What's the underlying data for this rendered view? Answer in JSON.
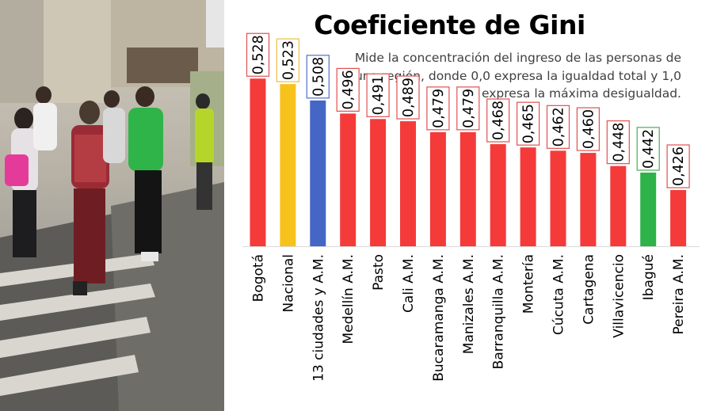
{
  "chart_data": {
    "type": "bar",
    "title": "Coeficiente de Gini",
    "subtitle": "Mide la concentración del ingreso de las personas de una región, donde 0,0 expresa la igualdad total y 1,0 expresa la máxima desigualdad.",
    "subtitle_lines": [
      "Mide la concentración del ingreso de las personas de",
      "una región, donde 0,0 expresa la igualdad total y 1,0",
      "expresa la máxima desigualdad."
    ],
    "categories": [
      "Bogotá",
      "Nacional",
      "13 ciudades y A.M.",
      "Medellín A.M.",
      "Pasto",
      "Cali A.M.",
      "Bucaramanga A.M.",
      "Manizales A.M.",
      "Barranquilla A.M.",
      "Montería",
      "Cúcuta A.M.",
      "Cartagena",
      "Villavicencio",
      "Ibagué",
      "Pereira A.M."
    ],
    "values": [
      0.528,
      0.523,
      0.508,
      0.496,
      0.491,
      0.489,
      0.479,
      0.479,
      0.468,
      0.465,
      0.462,
      0.46,
      0.448,
      0.442,
      0.426
    ],
    "value_labels": [
      "0,528",
      "0,523",
      "0,508",
      "0,496",
      "0,491",
      "0,489",
      "0,479",
      "0,479",
      "0,468",
      "0,465",
      "0,462",
      "0,460",
      "0,448",
      "0,442",
      "0,426"
    ],
    "bar_colors": [
      "#f53a3a",
      "#f7c21c",
      "#4466c4",
      "#f53a3a",
      "#f53a3a",
      "#f53a3a",
      "#f53a3a",
      "#f53a3a",
      "#f53a3a",
      "#f53a3a",
      "#f53a3a",
      "#f53a3a",
      "#f53a3a",
      "#2eb24a",
      "#f53a3a"
    ],
    "label_box_colors": [
      "#e05050",
      "#f0c040",
      "#5070c8",
      "#e05050",
      "#e05050",
      "#e05050",
      "#e05050",
      "#e05050",
      "#e05050",
      "#e05050",
      "#e05050",
      "#e05050",
      "#e05050",
      "#40b050",
      "#e05050"
    ],
    "value_label_style": "vertical text in outlined box above each bar",
    "category_label_style": "rotated vertical text below baseline",
    "grid": false,
    "legend": "none",
    "y_axis_visible": false
  },
  "photo": {
    "description_icon": "pedestrians-crossing-photo"
  }
}
